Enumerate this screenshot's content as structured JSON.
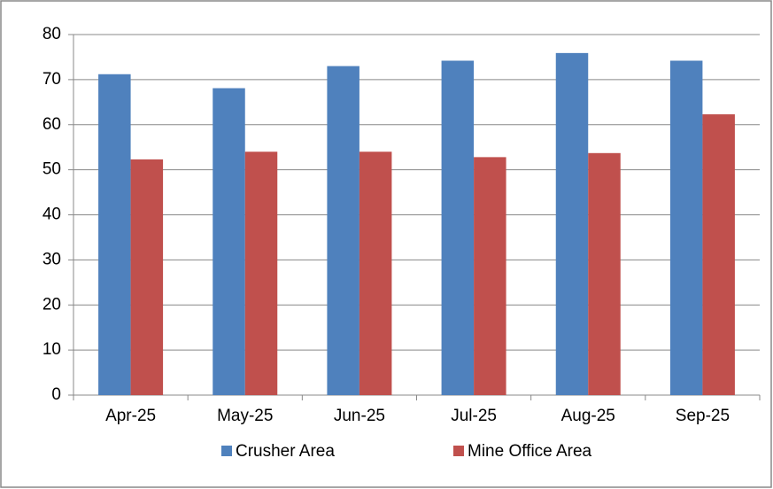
{
  "chart_data": {
    "type": "bar",
    "categories": [
      "Apr-25",
      "May-25",
      "Jun-25",
      "Jul-25",
      "Aug-25",
      "Sep-25"
    ],
    "series": [
      {
        "name": "Crusher Area",
        "color": "#4f81bd",
        "values": [
          71.2,
          68.1,
          73.0,
          74.2,
          75.9,
          74.2
        ]
      },
      {
        "name": "Mine Office Area",
        "color": "#c0504d",
        "values": [
          52.3,
          54.0,
          54.0,
          52.8,
          53.7,
          62.3
        ]
      }
    ],
    "ylim": [
      0,
      80
    ],
    "yticks": [
      0,
      10,
      20,
      30,
      40,
      50,
      60,
      70,
      80
    ],
    "grid": true,
    "legend": "bottom"
  }
}
